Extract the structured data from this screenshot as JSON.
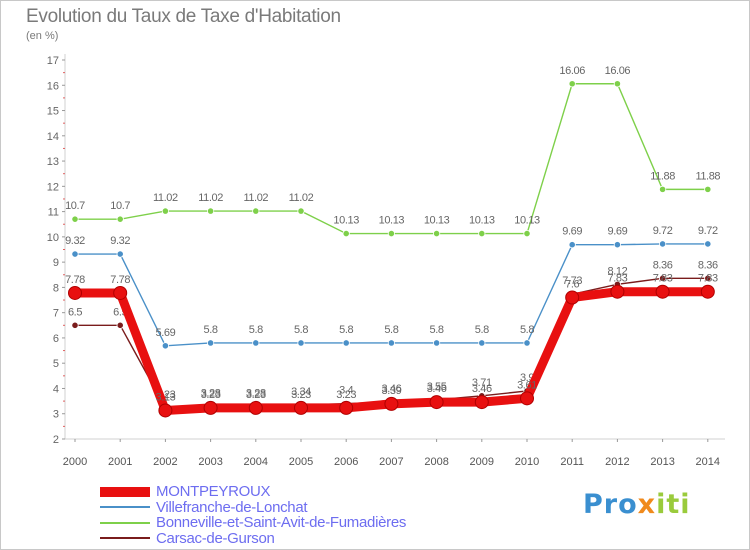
{
  "header": {
    "title": "Evolution du Taux de Taxe d'Habitation",
    "subtitle": "(en %)"
  },
  "logo": {
    "part1": "Pro",
    "part2": "x",
    "part3": "iti"
  },
  "chart_data": {
    "type": "line",
    "title": "Evolution du Taux de Taxe d'Habitation",
    "subtitle": "(en %)",
    "xlabel": "",
    "ylabel": "",
    "x": [
      2000,
      2001,
      2002,
      2003,
      2004,
      2005,
      2006,
      2007,
      2008,
      2009,
      2010,
      2011,
      2012,
      2013,
      2014
    ],
    "x_tick_labels": [
      "2000",
      "2001",
      "2002",
      "2003",
      "2004",
      "2005",
      "2006",
      "2007",
      "2008",
      "2009",
      "2010",
      "2011",
      "2012",
      "2013",
      "2014"
    ],
    "ylim": [
      2,
      17
    ],
    "y_ticks": [
      2,
      3,
      4,
      5,
      6,
      7,
      8,
      9,
      10,
      11,
      12,
      13,
      14,
      15,
      16,
      17
    ],
    "grid": false,
    "legend_position": "bottom-left",
    "series": [
      {
        "name": "Villefranche-de-Lonchat",
        "color": "#4a90c8",
        "style": "thin",
        "values": [
          9.32,
          9.32,
          5.69,
          5.8,
          5.8,
          5.8,
          5.8,
          5.8,
          5.8,
          5.8,
          5.8,
          9.69,
          9.69,
          9.72,
          9.72
        ],
        "labels": [
          "9.32",
          "9.32",
          "5.69",
          "5.8",
          "5.8",
          "5.8",
          "5.8",
          "5.8",
          "5.8",
          "5.8",
          "5.8",
          "9.69",
          "9.69",
          "9.72",
          "9.72"
        ]
      },
      {
        "name": "Bonneville-et-Saint-Avit-de-Fumadières",
        "color": "#7ed04a",
        "style": "thin",
        "values": [
          10.7,
          10.7,
          11.02,
          11.02,
          11.02,
          11.02,
          10.13,
          10.13,
          10.13,
          10.13,
          10.13,
          16.06,
          16.06,
          11.88,
          11.88
        ],
        "labels": [
          "10.7",
          "10.7",
          "11.02",
          "11.02",
          "11.02",
          "11.02",
          "10.13",
          "10.13",
          "10.13",
          "10.13",
          "10.13",
          "16.06",
          "16.06",
          "11.88",
          "11.88"
        ]
      },
      {
        "name": "Carsac-de-Gurson",
        "color": "#7a1c1c",
        "style": "thin",
        "values": [
          6.5,
          6.5,
          3.23,
          3.28,
          3.28,
          3.34,
          3.4,
          3.46,
          3.55,
          3.71,
          3.9,
          7.73,
          8.12,
          8.36,
          8.36
        ],
        "labels": [
          "6.5",
          "6.5",
          "3.23",
          "3.28",
          "3.28",
          "3.34",
          "3.4",
          "3.46",
          "3.55",
          "3.71",
          "3.9",
          "7.73",
          "8.12",
          "8.36",
          "8.36"
        ]
      },
      {
        "name": "MONTPEYROUX",
        "color": "#e81010",
        "style": "thick",
        "values": [
          7.78,
          7.78,
          3.13,
          3.23,
          3.23,
          3.23,
          3.23,
          3.39,
          3.46,
          3.46,
          3.61,
          7.6,
          7.83,
          7.83,
          7.83
        ],
        "labels": [
          "7.78",
          "7.78",
          "3.13",
          "3.23",
          "3.23",
          "3.23",
          "3.23",
          "3.39",
          "3.46",
          "3.46",
          "3.61",
          "7.6",
          "7.83",
          "7.83",
          "7.83"
        ]
      }
    ],
    "legend": [
      {
        "name": "MONTPEYROUX",
        "color": "#e81010",
        "style": "thick"
      },
      {
        "name": "Villefranche-de-Lonchat",
        "color": "#4a90c8",
        "style": "thin"
      },
      {
        "name": "Bonneville-et-Saint-Avit-de-Fumadières",
        "color": "#7ed04a",
        "style": "thin"
      },
      {
        "name": "Carsac-de-Gurson",
        "color": "#7a1c1c",
        "style": "thin"
      }
    ]
  }
}
